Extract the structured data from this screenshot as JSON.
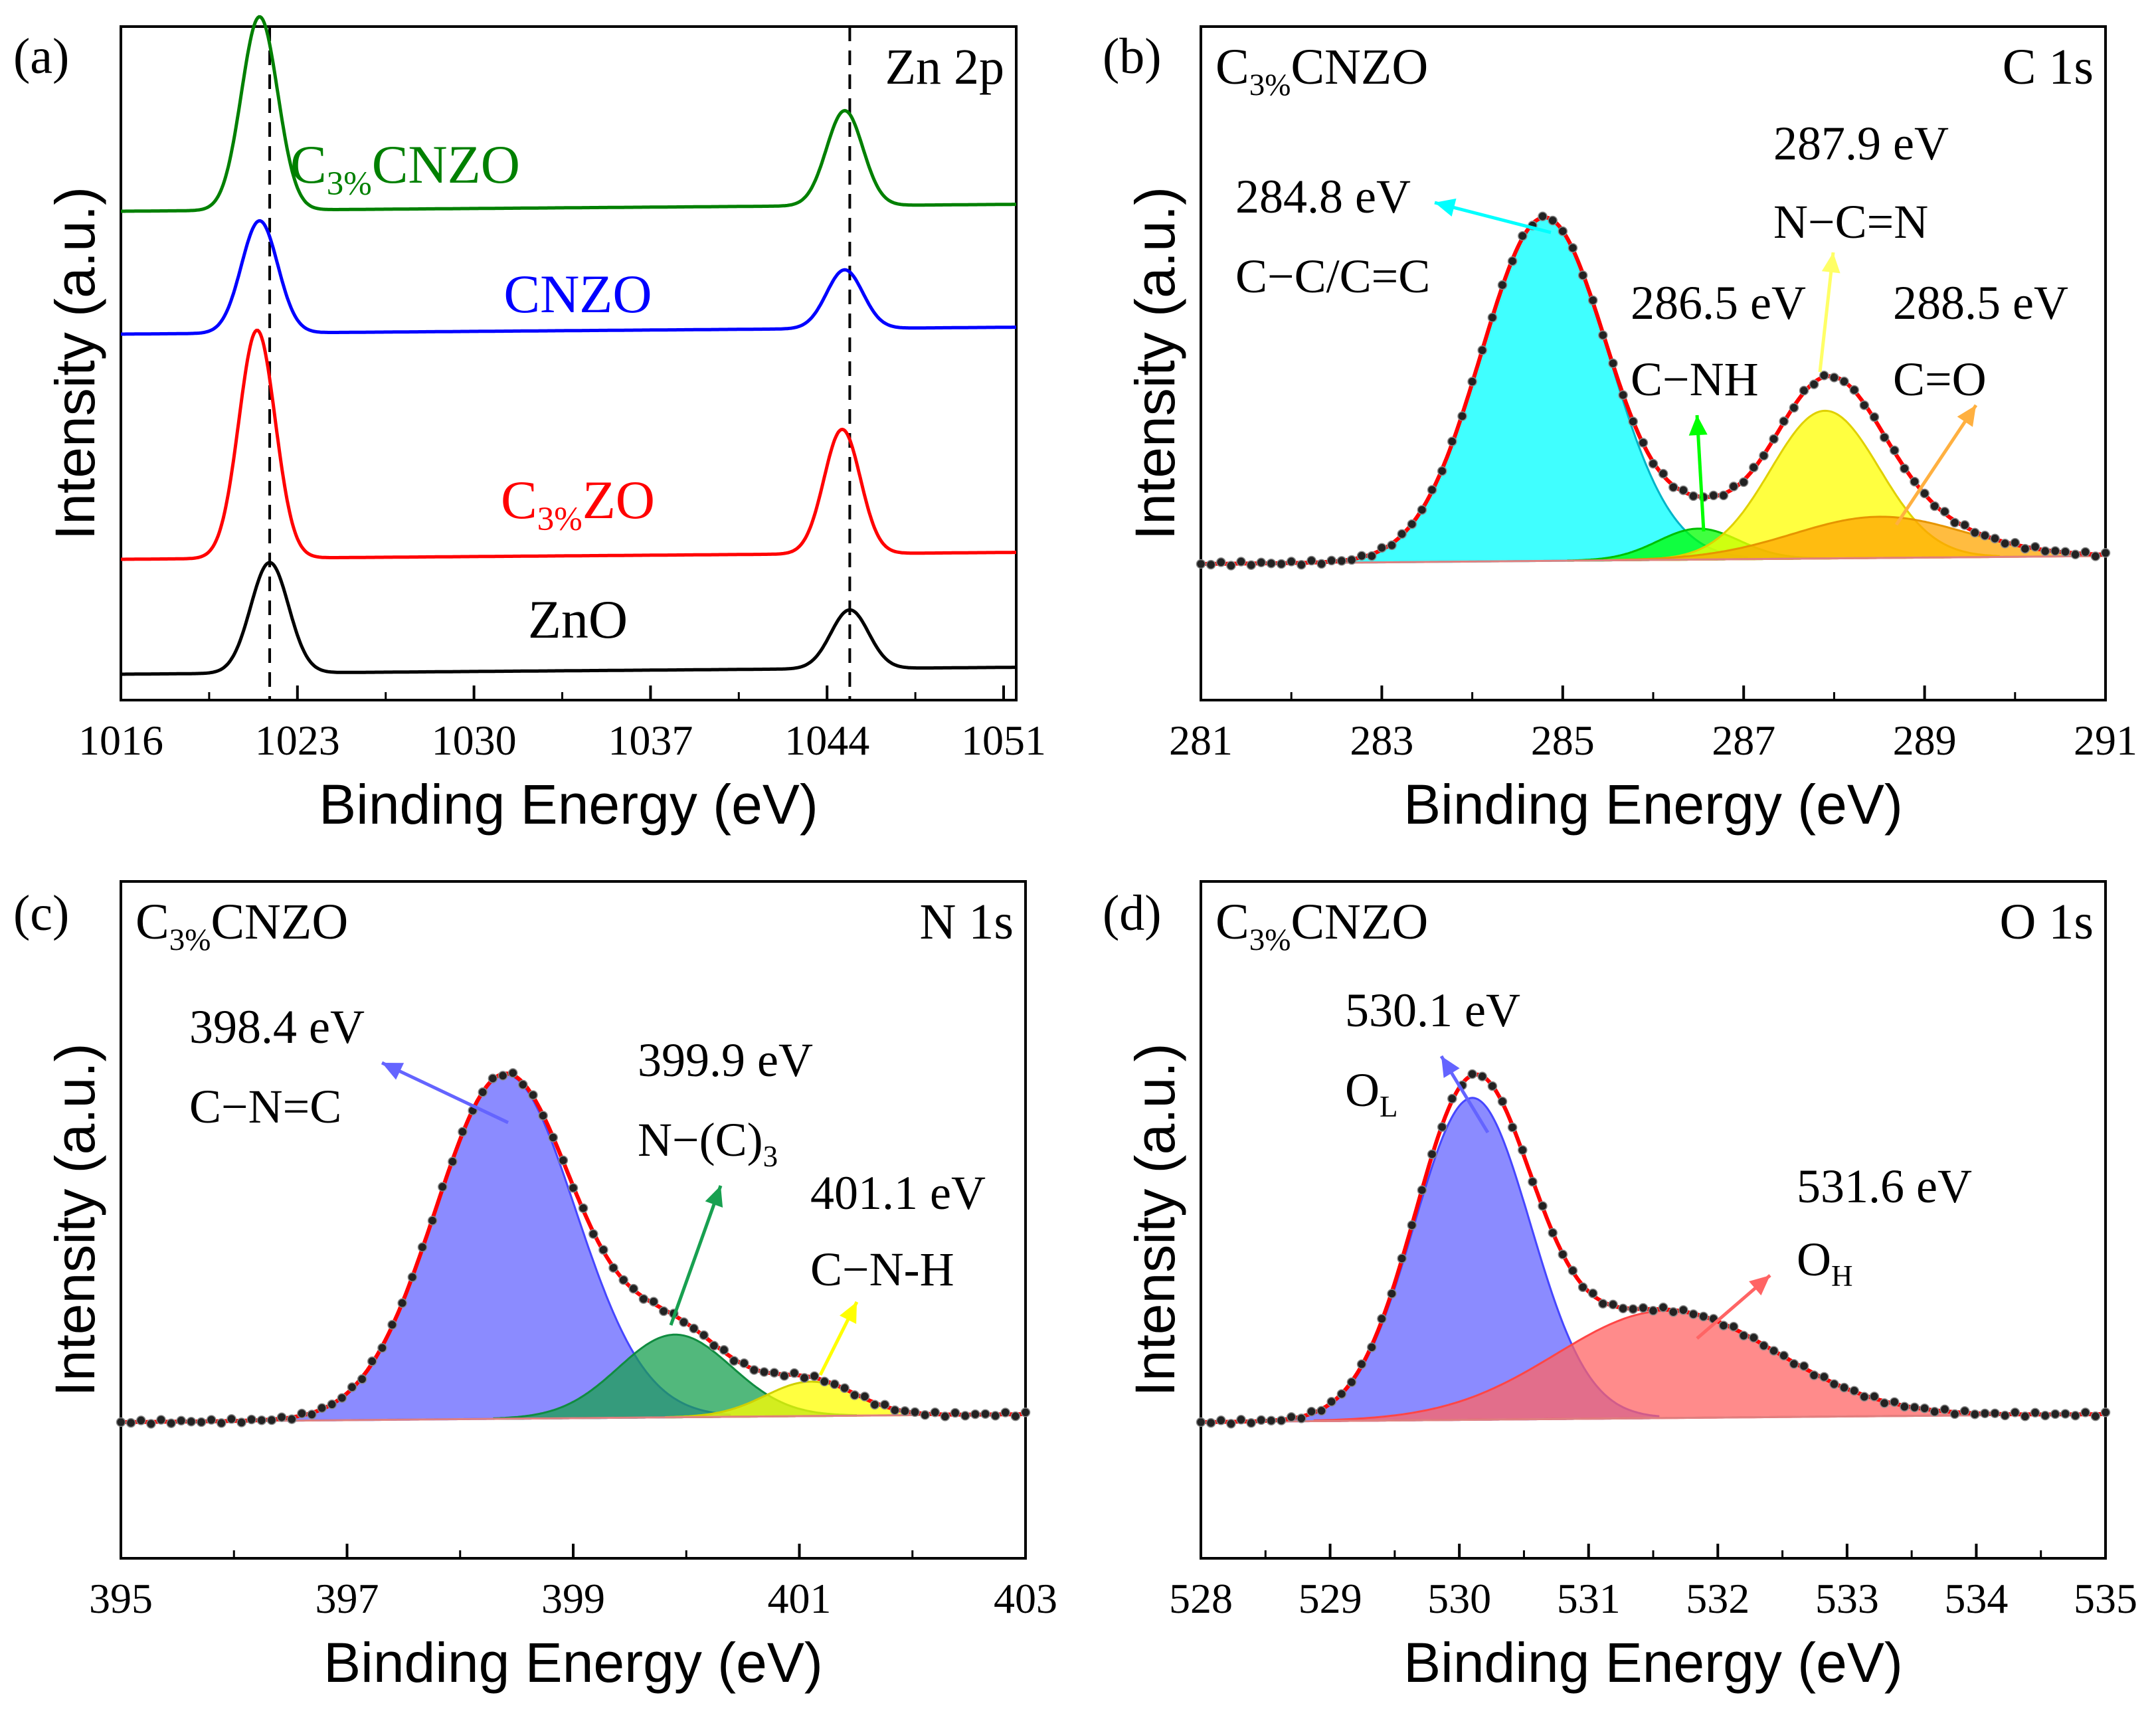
{
  "chart_data": [
    {
      "panel": "(a)",
      "type": "line",
      "title": "Zn 2p",
      "xlabel": "Binding Energy (eV)",
      "ylabel": "Intensity (a.u.)",
      "xlim": [
        1016,
        1051.5
      ],
      "xticks": [
        1016,
        1023,
        1030,
        1037,
        1044,
        1051
      ],
      "reference_lines": [
        1021.9,
        1044.9
      ],
      "series": [
        {
          "name": "ZnO",
          "label_main": "ZnO",
          "label_sub": "",
          "label_tail": "",
          "color": "#000000",
          "peaks": [
            {
              "center": 1021.9,
              "height": 0.64,
              "width": 0.75
            },
            {
              "center": 1044.9,
              "height": 0.34,
              "width": 0.75
            }
          ]
        },
        {
          "name": "C3%ZO",
          "label_main": "C",
          "label_sub": "3%",
          "label_tail": "ZO",
          "color": "#ff0000",
          "peaks": [
            {
              "center": 1021.4,
              "height": 1.32,
              "width": 0.72
            },
            {
              "center": 1044.6,
              "height": 0.72,
              "width": 0.72
            }
          ]
        },
        {
          "name": "CNZO",
          "label_main": "CNZO",
          "label_sub": "",
          "label_tail": "",
          "color": "#0000ff",
          "peaks": [
            {
              "center": 1021.5,
              "height": 0.65,
              "width": 0.72
            },
            {
              "center": 1044.7,
              "height": 0.34,
              "width": 0.72
            }
          ]
        },
        {
          "name": "C3%CNZO",
          "label_main": "C",
          "label_sub": "3%",
          "label_tail": "CNZO",
          "color": "#008000",
          "peaks": [
            {
              "center": 1021.5,
              "height": 1.12,
              "width": 0.72
            },
            {
              "center": 1044.7,
              "height": 0.55,
              "width": 0.72
            }
          ]
        }
      ]
    },
    {
      "panel": "(b)",
      "type": "area",
      "sample_main": "C",
      "sample_sub": "3%",
      "sample_tail": "CNZO",
      "title": "C 1s",
      "xlabel": "Binding Energy (eV)",
      "ylabel": "Intensity (a.u.)",
      "xlim": [
        281,
        291
      ],
      "xticks": [
        281,
        283,
        285,
        287,
        289,
        291
      ],
      "components": [
        {
          "center": 284.8,
          "height": 1.0,
          "sigma": 0.7,
          "fill": "#00ffff",
          "edge": "#00b4c8",
          "label_value": "284.8 eV",
          "label_bond": "C−C/C=C",
          "arrow_color": "#00ffff"
        },
        {
          "center": 286.5,
          "height": 0.09,
          "sigma": 0.45,
          "fill": "#00ff00",
          "edge": "#00c000",
          "label_value": "286.5 eV",
          "label_bond": "C−NH",
          "arrow_color": "#00ff00"
        },
        {
          "center": 287.9,
          "height": 0.43,
          "sigma": 0.6,
          "fill": "#ffff00",
          "edge": "#e0d000",
          "label_value": "287.9 eV",
          "label_bond": "N−C=N",
          "arrow_color": "#ffff66"
        },
        {
          "center": 288.5,
          "height": 0.12,
          "sigma": 0.95,
          "fill": "#ffa500",
          "edge": "#e69500",
          "label_value": "288.5 eV",
          "label_bond": "C=O",
          "arrow_color": "#ffb040"
        }
      ]
    },
    {
      "panel": "(c)",
      "type": "area",
      "sample_main": "C",
      "sample_sub": "3%",
      "sample_tail": "CNZO",
      "title": "N 1s",
      "xlabel": "Binding Energy (eV)",
      "ylabel": "Intensity (a.u.)",
      "xlim": [
        395,
        403
      ],
      "xticks": [
        395,
        397,
        399,
        401,
        403
      ],
      "components": [
        {
          "center": 398.4,
          "height": 1.0,
          "sigma": 0.62,
          "fill": "#6464ff",
          "edge": "#4646ff",
          "label_value": "398.4 eV",
          "label_bond": "C−N=C",
          "label_bond_sub": "",
          "arrow_color": "#6464ff"
        },
        {
          "center": 399.9,
          "height": 0.24,
          "sigma": 0.5,
          "fill": "#18a050",
          "edge": "#108c40",
          "label_value": "399.9 eV",
          "label_bond": "N−(C)",
          "label_bond_sub": "3",
          "arrow_color": "#18a050"
        },
        {
          "center": 401.1,
          "height": 0.1,
          "sigma": 0.4,
          "fill": "#ffff00",
          "edge": "#d0d000",
          "label_value": "401.1 eV",
          "label_bond": "C−N-H",
          "label_bond_sub": "",
          "arrow_color": "#ffff00"
        }
      ]
    },
    {
      "panel": "(d)",
      "type": "area",
      "sample_main": "C",
      "sample_sub": "3%",
      "sample_tail": "CNZO",
      "title": "O 1s",
      "xlabel": "Binding Energy (eV)",
      "ylabel": "Intensity (a.u.)",
      "xlim": [
        528,
        535
      ],
      "xticks": [
        528,
        529,
        530,
        531,
        532,
        533,
        534,
        535
      ],
      "components": [
        {
          "center": 530.1,
          "height": 0.9,
          "sigma": 0.45,
          "fill": "#6464ff",
          "edge": "#4646ff",
          "label_value": "530.1 eV",
          "label_bond": "O",
          "label_bond_sub": "L",
          "arrow_color": "#6464ff"
        },
        {
          "center": 531.6,
          "height": 0.3,
          "sigma": 0.85,
          "fill": "#ff6464",
          "edge": "#ff4646",
          "label_value": "531.6 eV",
          "label_bond": "O",
          "label_bond_sub": "H",
          "arrow_color": "#ff6464"
        }
      ]
    }
  ]
}
